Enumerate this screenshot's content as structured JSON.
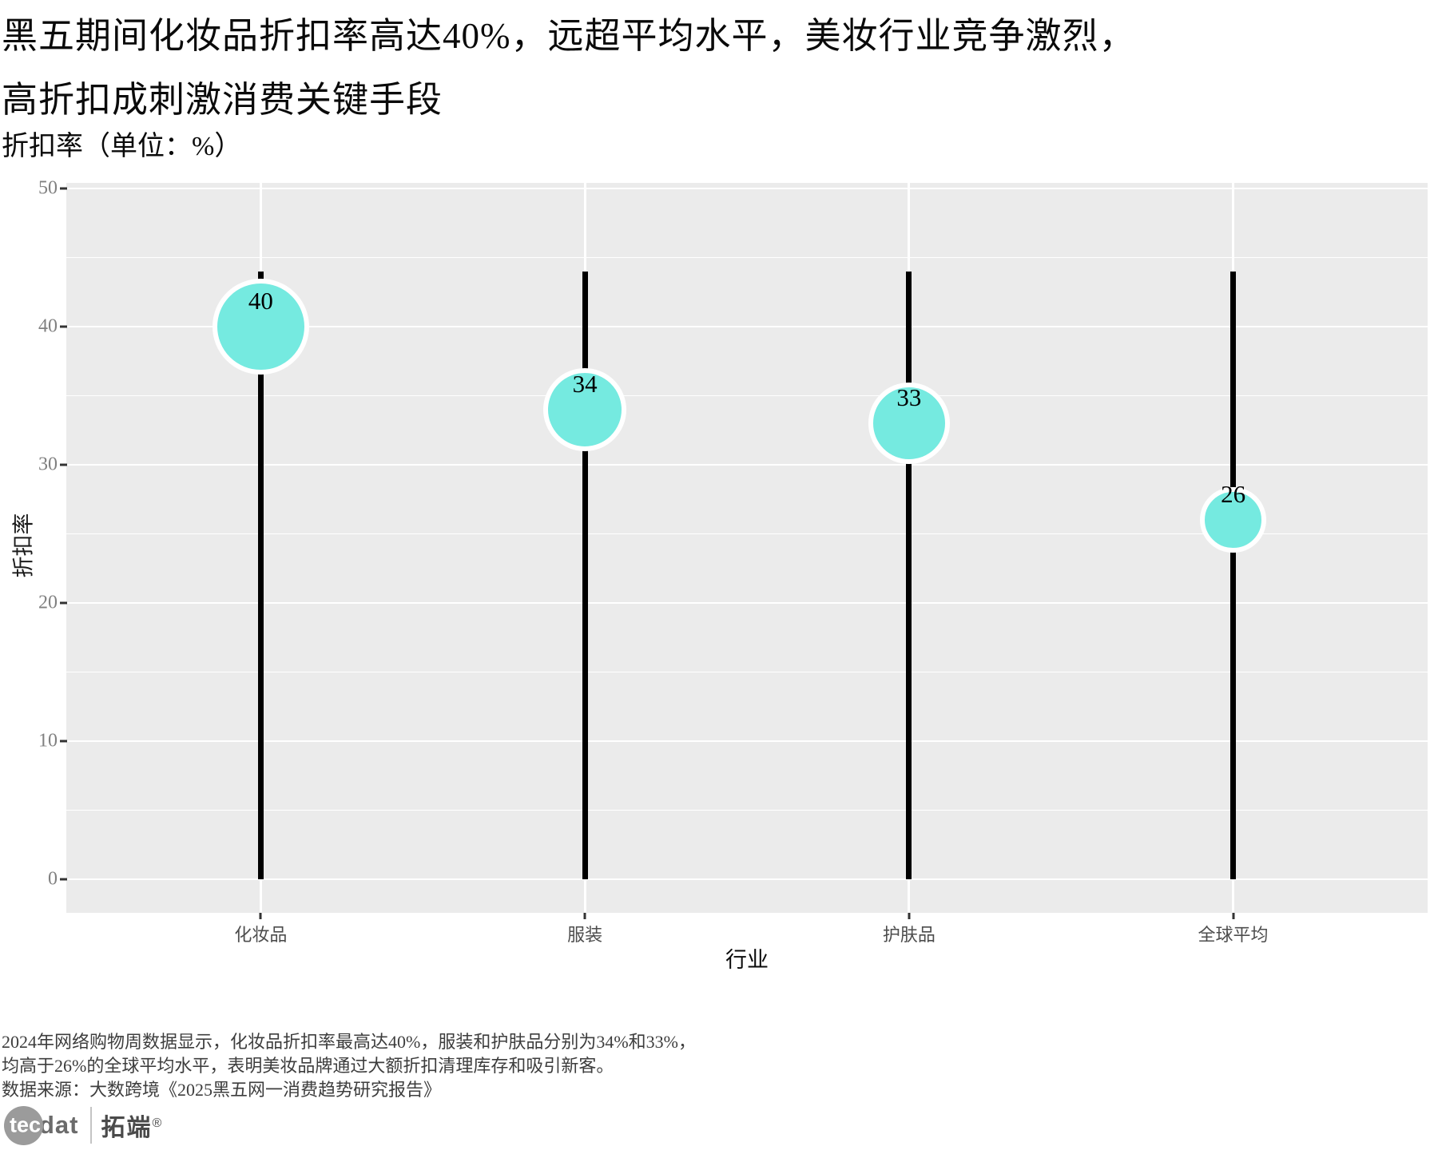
{
  "title": {
    "line1": "黑五期间化妆品折扣率高达40%，远超平均水平，美妆行业竞争激烈，",
    "line2": "高折扣成刺激消费关键手段"
  },
  "subtitle": "折扣率（单位：%）",
  "chart_data": {
    "type": "lollipop",
    "categories": [
      "化妆品",
      "服装",
      "护肤品",
      "全球平均"
    ],
    "values": [
      40,
      34,
      33,
      26
    ],
    "point_labels": [
      "40",
      "34",
      "33",
      "26"
    ],
    "title": "折扣率（单位：%）",
    "xlabel": "行业",
    "ylabel": "折扣率",
    "ylim": [
      0,
      50
    ],
    "yticks": [
      0,
      10,
      20,
      30,
      40,
      50
    ],
    "minor_yticks": [
      5,
      15,
      25,
      35,
      45
    ],
    "stem_top": 44,
    "grid": "on",
    "legend": "none",
    "panel_bg": "#ebebeb",
    "grid_color": "#ffffff",
    "stem_color": "#000000",
    "point_fill": "#75eae0",
    "point_stroke": "#ffffff",
    "tick_label_color": "#808080",
    "category_label_color": "#4d4d4d"
  },
  "footer": {
    "line1": "2024年网络购物周数据显示，化妆品折扣率最高达40%，服装和护肤品分别为34%和33%，",
    "line2": "均高于26%的全球平均水平，表明美妆品牌通过大额折扣清理库存和吸引新客。",
    "line3": "数据来源：大数跨境《2025黑五网一消费趋势研究报告》"
  },
  "logo": {
    "tec": "tec",
    "dat": "dat",
    "brand": "拓端",
    "reg": "®"
  }
}
